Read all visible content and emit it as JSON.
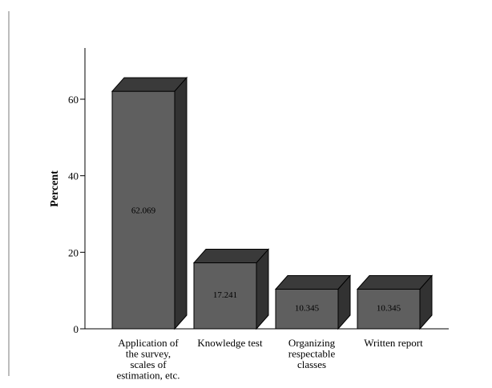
{
  "chart_data": {
    "type": "bar",
    "style": "3d",
    "title": "",
    "xlabel": "",
    "ylabel": "Percent",
    "ylim": [
      0,
      72
    ],
    "yticks": [
      0,
      20,
      40,
      60
    ],
    "grid": false,
    "bar_color": "#5f5f5f",
    "bar_top_color": "#3a3a3a",
    "bar_side_color": "#323232",
    "categories": [
      [
        "Application of",
        "the survey,",
        "scales of",
        "estimation, etc."
      ],
      [
        "Knowledge test"
      ],
      [
        "Organizing",
        "respectable",
        "classes"
      ],
      [
        "Written report"
      ]
    ],
    "values": [
      62.069,
      17.241,
      10.345,
      10.345
    ],
    "value_labels": [
      "62.069",
      "17.241",
      "10.345",
      "10.345"
    ]
  }
}
